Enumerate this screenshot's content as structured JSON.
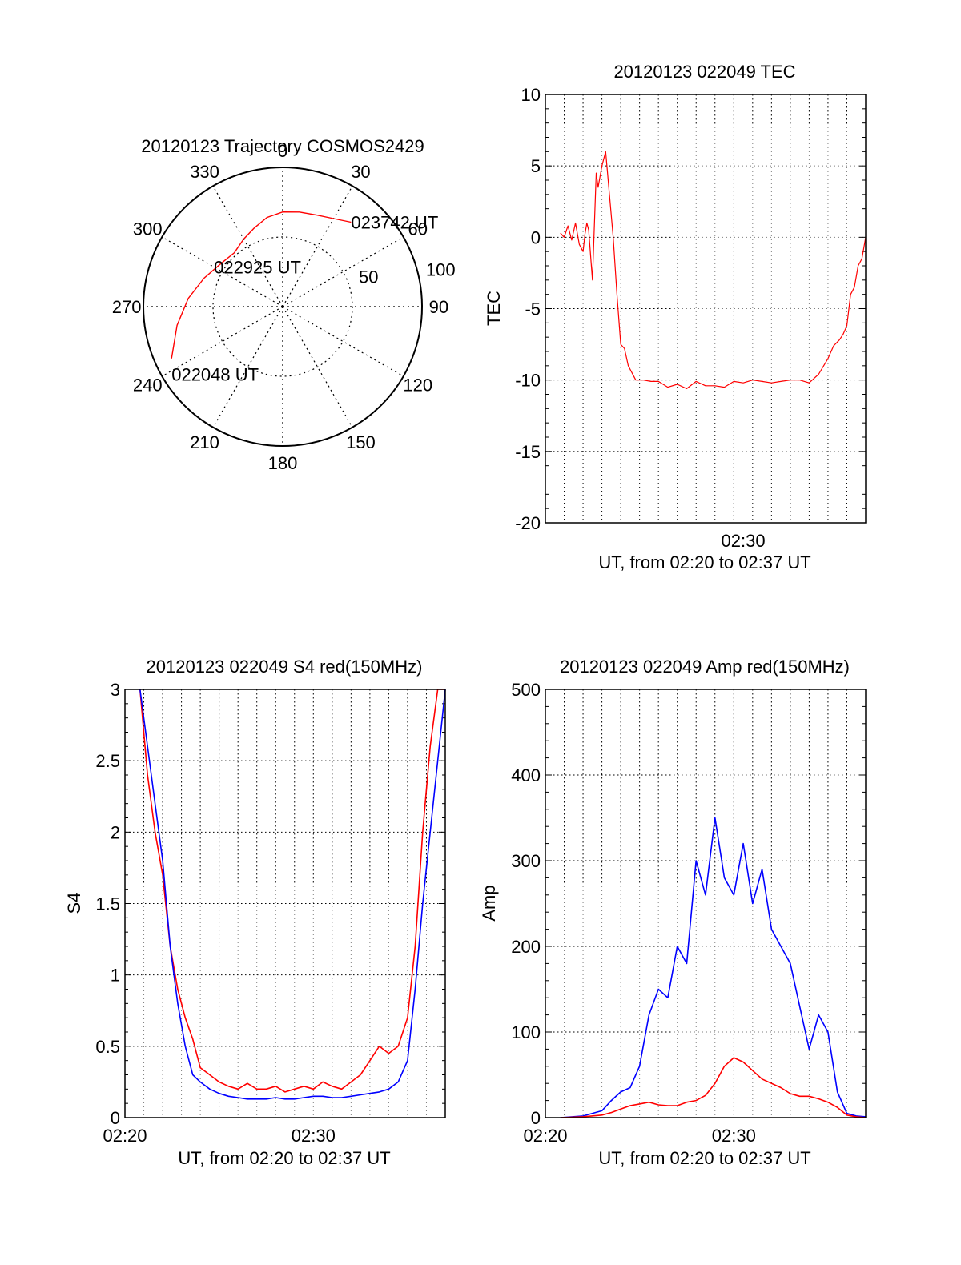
{
  "chart_data": [
    {
      "type": "polar",
      "title": "20120123 Trajectory COSMOS2429",
      "azimuth_labels": [
        "0",
        "30",
        "60",
        "90",
        "120",
        "150",
        "180",
        "210",
        "240",
        "270",
        "300",
        "330"
      ],
      "elevation_labels": [
        "50",
        "100"
      ],
      "series": [
        {
          "color": "#ff0000",
          "points": [
            {
              "az": 245,
              "el_r": 88
            },
            {
              "az": 260,
              "el_r": 77
            },
            {
              "az": 275,
              "el_r": 68
            },
            {
              "az": 290,
              "el_r": 60
            },
            {
              "az": 305,
              "el_r": 54
            },
            {
              "az": 318,
              "el_r": 52
            },
            {
              "az": 330,
              "el_r": 56
            },
            {
              "az": 340,
              "el_r": 60
            },
            {
              "az": 350,
              "el_r": 65
            },
            {
              "az": 0,
              "el_r": 68
            },
            {
              "az": 10,
              "el_r": 69
            },
            {
              "az": 20,
              "el_r": 70
            },
            {
              "az": 30,
              "el_r": 73
            },
            {
              "az": 39,
              "el_r": 78
            }
          ]
        }
      ],
      "annotations": [
        {
          "text": "022048 UT",
          "az": 245,
          "el_r": 88
        },
        {
          "text": "022925 UT",
          "az": 300,
          "el_r": 57
        },
        {
          "text": "023742 UT",
          "az": 39,
          "el_r": 78
        }
      ]
    },
    {
      "type": "line",
      "title": "20120123 022049 TEC",
      "xlabel": "UT, from 02:20 to 02:37 UT",
      "ylabel": "TEC",
      "xlim": [
        0,
        17
      ],
      "ylim": [
        -20,
        10
      ],
      "x_tick_labels": [
        {
          "x": 10.5,
          "label": "02:30"
        }
      ],
      "y_tick_labels": [
        "-20",
        "-15",
        "-10",
        "-5",
        "0",
        "5",
        "10"
      ],
      "grid": true,
      "series": [
        {
          "color": "#ff0000",
          "x": [
            0.8,
            1.0,
            1.2,
            1.4,
            1.6,
            1.8,
            2.0,
            2.1,
            2.2,
            2.3,
            2.5,
            2.7,
            2.8,
            3.0,
            3.2,
            3.4,
            3.6,
            3.8,
            4.0,
            4.2,
            4.4,
            4.8,
            5.2,
            5.6,
            6.0,
            6.5,
            7.0,
            7.5,
            8.0,
            8.5,
            9.0,
            9.5,
            10.0,
            10.5,
            11.0,
            11.5,
            12.0,
            12.5,
            13.0,
            13.5,
            14.0,
            14.5,
            15.0,
            15.3,
            15.6,
            15.8,
            16.0,
            16.2,
            16.4,
            16.6,
            16.8,
            17.0
          ],
          "y": [
            0.3,
            0.0,
            0.8,
            -0.2,
            1.0,
            -0.5,
            -1.0,
            0.2,
            1.0,
            0.5,
            -3.0,
            4.5,
            3.5,
            5.0,
            6.0,
            3.0,
            0.0,
            -4.0,
            -7.5,
            -7.8,
            -9.0,
            -10.0,
            -10.0,
            -10.1,
            -10.1,
            -10.5,
            -10.3,
            -10.6,
            -10.1,
            -10.4,
            -10.4,
            -10.5,
            -10.1,
            -10.2,
            -10.0,
            -10.1,
            -10.2,
            -10.1,
            -10.0,
            -10.0,
            -10.2,
            -9.6,
            -8.5,
            -7.6,
            -7.2,
            -6.8,
            -6.2,
            -4.0,
            -3.5,
            -2.0,
            -1.5,
            0.0
          ]
        }
      ]
    },
    {
      "type": "line",
      "title": "20120123 022049 S4 red(150MHz)",
      "xlabel": "UT, from 02:20 to 02:37 UT",
      "ylabel": "S4",
      "xlim": [
        0,
        17
      ],
      "ylim": [
        0,
        3
      ],
      "x_tick_labels": [
        {
          "x": 0,
          "label": "02:20"
        },
        {
          "x": 10,
          "label": "02:30"
        }
      ],
      "y_tick_labels": [
        "0",
        "0.5",
        "1",
        "1.5",
        "2",
        "2.5",
        "3"
      ],
      "grid": true,
      "series": [
        {
          "color": "#ff0000",
          "x": [
            0.8,
            1.2,
            1.6,
            2.0,
            2.4,
            2.8,
            3.2,
            3.6,
            4.0,
            4.5,
            5.0,
            5.5,
            6.0,
            6.5,
            7.0,
            7.5,
            8.0,
            8.5,
            9.0,
            9.5,
            10.0,
            10.5,
            11.0,
            11.5,
            12.0,
            12.5,
            13.0,
            13.5,
            14.0,
            14.5,
            15.0,
            15.4,
            15.8,
            16.2,
            16.6,
            17.0
          ],
          "y": [
            3.0,
            2.4,
            2.0,
            1.7,
            1.2,
            0.9,
            0.7,
            0.55,
            0.35,
            0.3,
            0.25,
            0.22,
            0.2,
            0.24,
            0.2,
            0.2,
            0.22,
            0.18,
            0.2,
            0.22,
            0.2,
            0.25,
            0.22,
            0.2,
            0.25,
            0.3,
            0.4,
            0.5,
            0.45,
            0.5,
            0.7,
            1.2,
            2.0,
            2.6,
            3.0,
            3.0
          ]
        },
        {
          "color": "#0000ff",
          "x": [
            0.8,
            1.2,
            1.6,
            2.0,
            2.4,
            2.8,
            3.2,
            3.6,
            4.0,
            4.5,
            5.0,
            5.5,
            6.0,
            6.5,
            7.0,
            7.5,
            8.0,
            8.5,
            9.0,
            9.5,
            10.0,
            10.5,
            11.0,
            11.5,
            12.0,
            12.5,
            13.0,
            13.5,
            14.0,
            14.5,
            15.0,
            15.4,
            15.8,
            16.2,
            16.6,
            17.0
          ],
          "y": [
            3.0,
            2.6,
            2.2,
            1.8,
            1.2,
            0.8,
            0.5,
            0.3,
            0.25,
            0.2,
            0.17,
            0.15,
            0.14,
            0.13,
            0.13,
            0.13,
            0.14,
            0.13,
            0.13,
            0.14,
            0.15,
            0.15,
            0.14,
            0.14,
            0.15,
            0.16,
            0.17,
            0.18,
            0.2,
            0.25,
            0.4,
            0.9,
            1.5,
            2.0,
            2.5,
            3.0
          ]
        }
      ]
    },
    {
      "type": "line",
      "title": "20120123 022049 Amp red(150MHz)",
      "xlabel": "UT, from 02:20 to 02:37 UT",
      "ylabel": "Amp",
      "xlim": [
        0,
        17
      ],
      "ylim": [
        0,
        500
      ],
      "x_tick_labels": [
        {
          "x": 0,
          "label": "02:20"
        },
        {
          "x": 10,
          "label": "02:30"
        }
      ],
      "y_tick_labels": [
        "0",
        "100",
        "200",
        "300",
        "400",
        "500"
      ],
      "grid": true,
      "series": [
        {
          "color": "#0000ff",
          "x": [
            0.8,
            2.0,
            3.0,
            3.5,
            4.0,
            4.5,
            5.0,
            5.5,
            6.0,
            6.5,
            7.0,
            7.5,
            8.0,
            8.5,
            9.0,
            9.5,
            10.0,
            10.5,
            11.0,
            11.5,
            12.0,
            12.5,
            13.0,
            13.5,
            14.0,
            14.5,
            15.0,
            15.5,
            16.0,
            16.5,
            17.0
          ],
          "y": [
            0,
            2,
            8,
            20,
            30,
            35,
            60,
            120,
            150,
            140,
            200,
            180,
            300,
            260,
            350,
            280,
            260,
            320,
            250,
            290,
            220,
            200,
            180,
            130,
            80,
            120,
            100,
            30,
            5,
            2,
            1
          ]
        },
        {
          "color": "#ff0000",
          "x": [
            0.8,
            2.0,
            3.0,
            3.5,
            4.0,
            4.5,
            5.0,
            5.5,
            6.0,
            6.5,
            7.0,
            7.5,
            8.0,
            8.5,
            9.0,
            9.5,
            10.0,
            10.5,
            11.0,
            11.5,
            12.0,
            12.5,
            13.0,
            13.5,
            14.0,
            14.5,
            15.0,
            15.5,
            16.0,
            16.5,
            17.0
          ],
          "y": [
            0,
            1,
            3,
            6,
            10,
            14,
            16,
            18,
            15,
            14,
            14,
            18,
            20,
            26,
            40,
            60,
            70,
            65,
            55,
            45,
            40,
            35,
            28,
            25,
            25,
            22,
            18,
            12,
            3,
            1,
            0
          ]
        }
      ]
    }
  ]
}
